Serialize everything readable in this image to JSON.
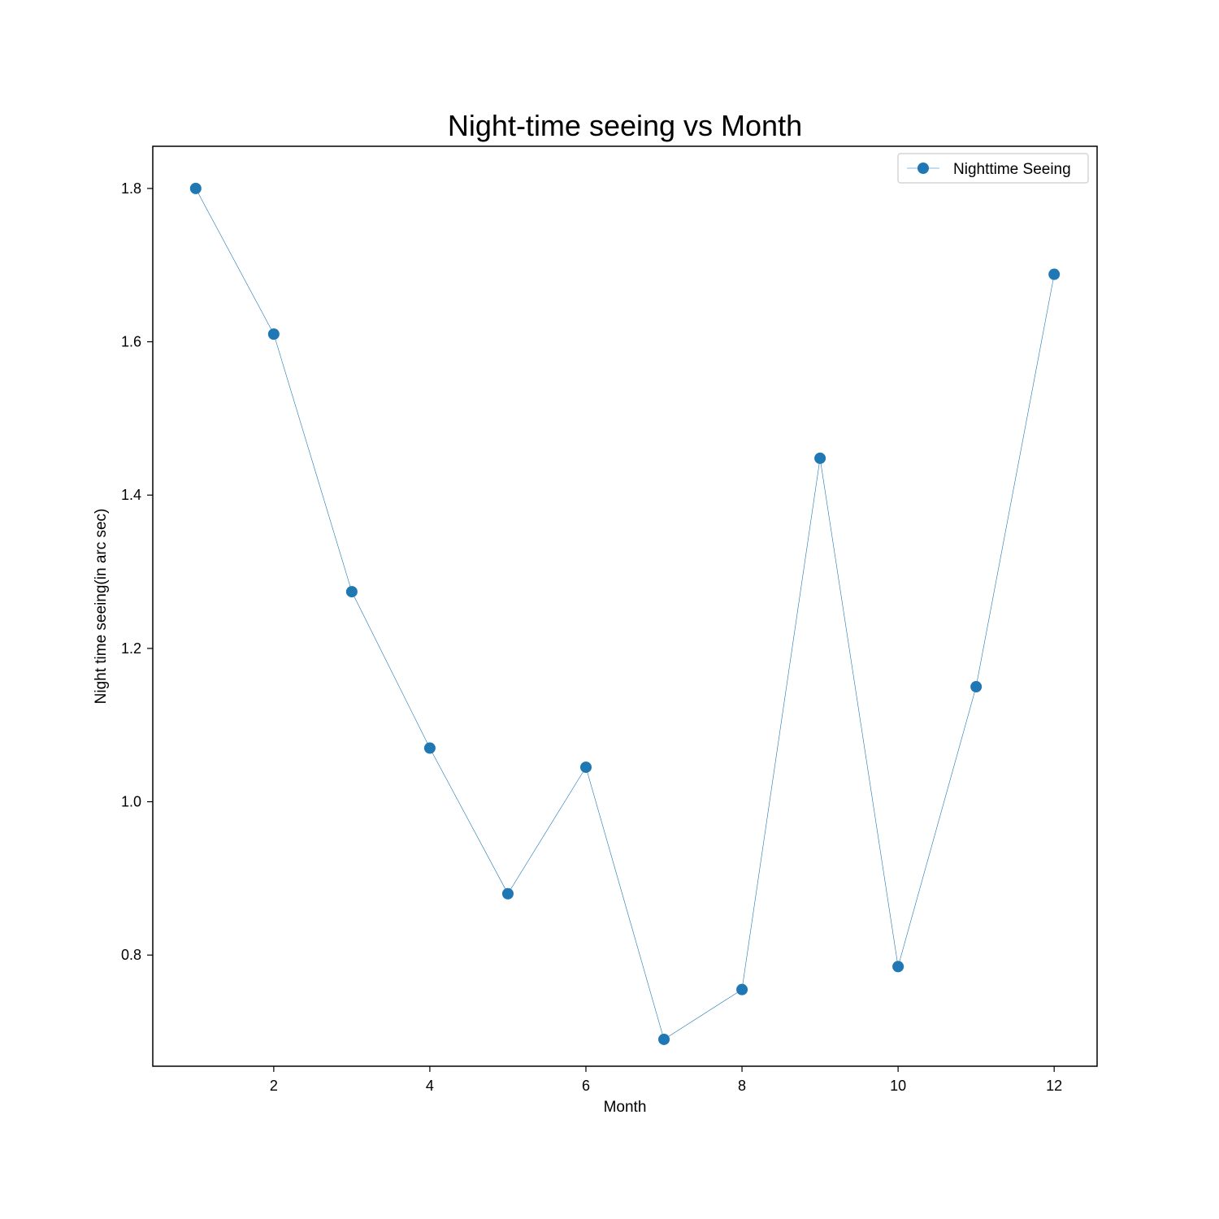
{
  "chart_data": {
    "type": "line",
    "title": "Night-time seeing vs Month",
    "xlabel": "Month",
    "ylabel": "Night time seeing(in arc sec)",
    "xlim": [
      0.45,
      12.55
    ],
    "ylim": [
      0.655,
      1.855
    ],
    "xticks": [
      2,
      4,
      6,
      8,
      10,
      12
    ],
    "yticks": [
      0.8,
      1.0,
      1.2,
      1.4,
      1.6,
      1.8
    ],
    "ytick_labels": [
      "0.8",
      "1.0",
      "1.2",
      "1.4",
      "1.6",
      "1.8"
    ],
    "grid": false,
    "legend_position": "top-right",
    "series": [
      {
        "name": "Nighttime Seeing",
        "color": "#1f77b4",
        "marker": "circle",
        "x": [
          1,
          2,
          3,
          4,
          5,
          6,
          7,
          8,
          9,
          10,
          11,
          12
        ],
        "y": [
          1.8,
          1.61,
          1.274,
          1.07,
          0.88,
          1.045,
          0.69,
          0.755,
          1.448,
          0.785,
          1.15,
          1.688
        ]
      }
    ]
  }
}
